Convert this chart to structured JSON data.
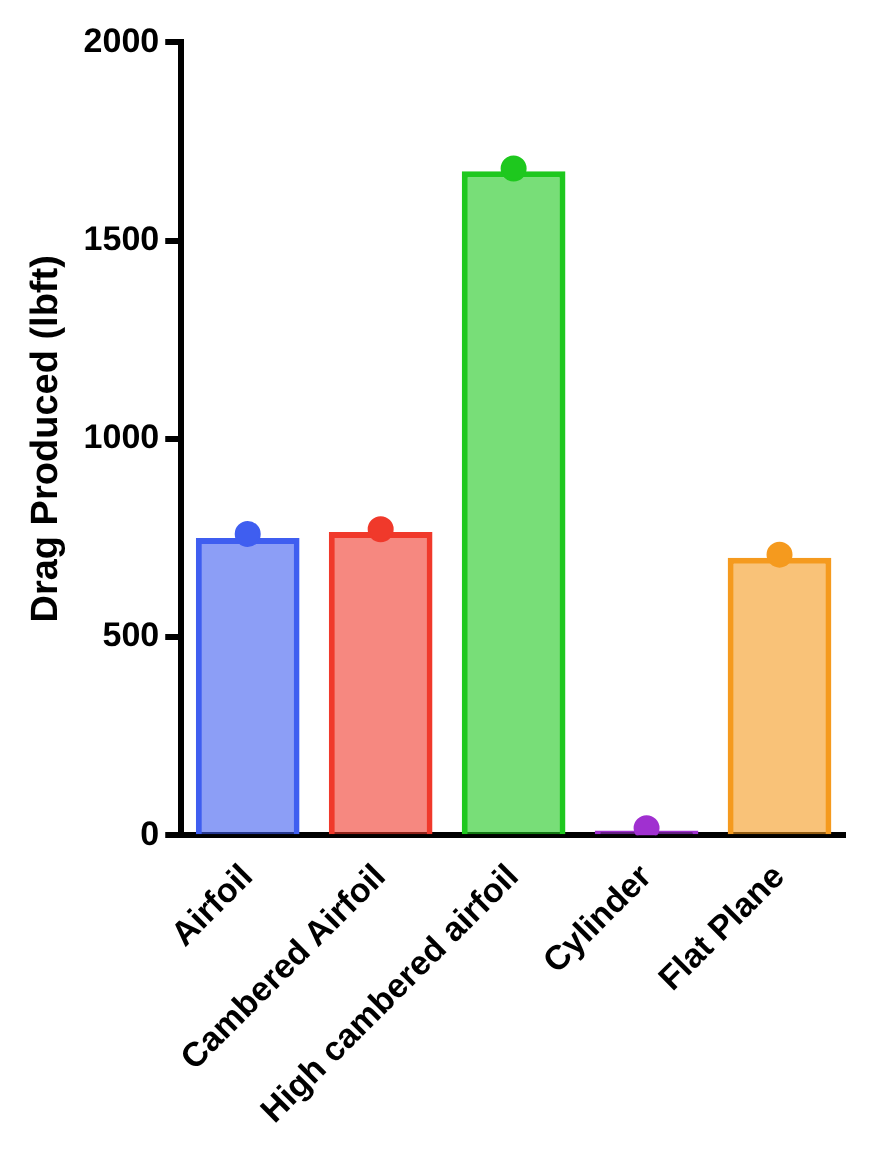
{
  "chart_data": {
    "type": "bar",
    "ylabel": "Drag Produced (lbft)",
    "categories": [
      "Airfoil",
      "Cambered Airfoil",
      "High cambered airfoil",
      "Cylinder",
      "Flat Plane"
    ],
    "series": [
      {
        "values": [
          750,
          765,
          1675,
          12,
          700
        ],
        "colors": [
          "#3f5ef0",
          "#f0392b",
          "#1ec81e",
          "#a030d0",
          "#f59a1e"
        ]
      },
      {
        "type": "scatter",
        "x": [
          "Airfoil",
          "Cambered Airfoil",
          "High cambered airfoil",
          "Cylinder",
          "Flat Plane"
        ],
        "values": [
          760,
          772,
          1682,
          18,
          708
        ],
        "colors": [
          "#3f5ef0",
          "#f0392b",
          "#1ec81e",
          "#a030d0",
          "#f59a1e"
        ]
      }
    ],
    "ylim": [
      0,
      2000
    ],
    "yticks": [
      0,
      500,
      1000,
      1500,
      2000
    ],
    "grid": false,
    "legend": false,
    "marker": "circle"
  }
}
